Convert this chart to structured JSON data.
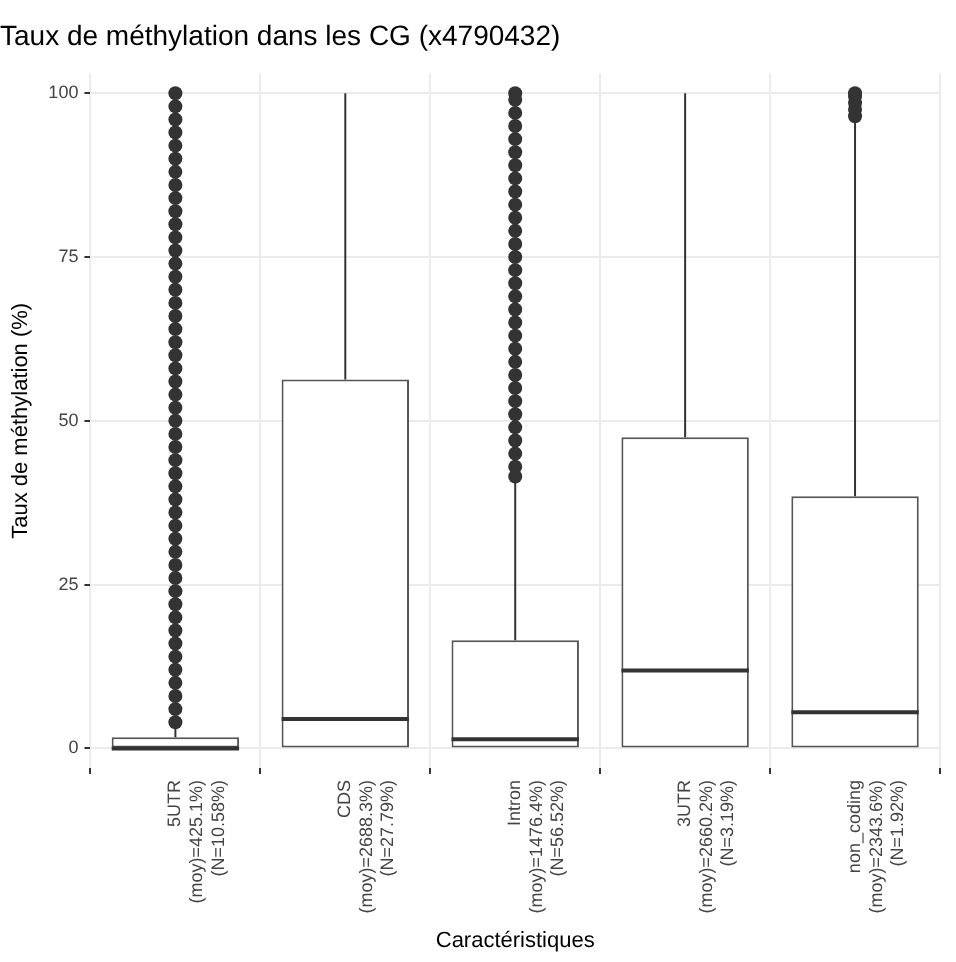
{
  "chart_data": {
    "type": "box",
    "title": "Taux de méthylation dans les CG (x4790432)",
    "xlabel": "Caractéristiques",
    "ylabel": "Taux de méthylation (%)",
    "categories": [
      "5UTR\n(moy)=425.1%)\n(N=10.58%)",
      "CDS\n(moy)=2688.3%)\n(N=27.79%)",
      "Intron\n(moy)=1476.4%)\n(N=56.52%)",
      "3UTR\n(moy)=2660.2%)\n(N=3.19%)",
      "non_coding\n(moy)=2343.6%)\n(N=1.92%)"
    ],
    "boxes": [
      {
        "low": 0,
        "q1": 0,
        "median": 0,
        "q3": 1.7,
        "high": 3.8,
        "outliers": [
          4,
          6,
          8,
          10,
          12,
          14,
          16,
          18,
          20,
          22,
          24,
          26,
          28,
          30,
          32,
          34,
          36,
          38,
          40,
          42,
          44,
          46,
          48,
          50,
          52,
          54,
          56,
          58,
          60,
          62,
          64,
          66,
          68,
          70,
          72,
          74,
          76,
          78,
          80,
          82,
          84,
          86,
          88,
          90,
          92,
          94,
          96,
          98,
          100
        ]
      },
      {
        "low": 0,
        "q1": 0,
        "median": 4.5,
        "q3": 56.3,
        "high": 100
      },
      {
        "low": 0,
        "q1": 0,
        "median": 1.4,
        "q3": 16.5,
        "high": 40.9,
        "outliers": [
          41.5,
          43,
          45,
          47,
          49,
          51,
          53,
          55,
          57,
          59,
          61,
          63,
          65,
          67,
          69,
          71,
          73,
          75,
          77,
          79,
          81,
          83,
          85,
          87,
          89,
          91,
          93,
          95,
          97,
          99,
          100
        ]
      },
      {
        "low": 0,
        "q1": 0,
        "median": 11.9,
        "q3": 47.5,
        "high": 100
      },
      {
        "low": 0,
        "q1": 0,
        "median": 5.5,
        "q3": 38.5,
        "high": 96,
        "outliers": [
          96.5,
          97.5,
          98.5,
          99.5,
          100
        ]
      }
    ],
    "ylim": [
      -3,
      103
    ],
    "yticks": [
      0,
      25,
      50,
      75,
      100
    ],
    "grid": true
  }
}
